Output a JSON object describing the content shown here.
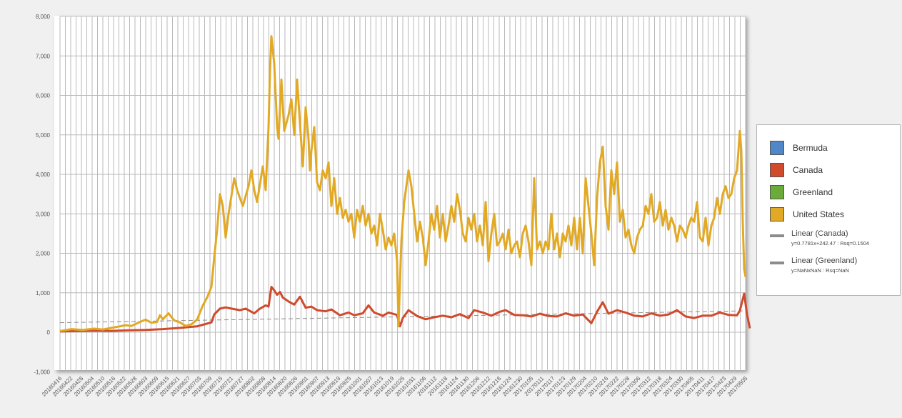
{
  "chart_data": {
    "type": "line",
    "y_ticks": [
      "-1,000",
      "0",
      "1,000",
      "2,000",
      "3,000",
      "4,000",
      "5,000",
      "6,000",
      "7,000",
      "8,000"
    ],
    "ylim": [
      -1000,
      8000
    ],
    "x_tick_labels": [
      "20160416",
      "20160422",
      "20160428",
      "20160504",
      "20160510",
      "20160516",
      "20160522",
      "20160528",
      "20160603",
      "20160609",
      "20160615",
      "20160621",
      "20160627",
      "20160703",
      "20160709",
      "20160715",
      "20160721",
      "20160727",
      "20160802",
      "20160808",
      "20160814",
      "20160820",
      "20160826",
      "20160901",
      "20160907",
      "20160913",
      "20160919",
      "20160925",
      "20161001",
      "20161007",
      "20161013",
      "20161019",
      "20161025",
      "20161031",
      "20161106",
      "20161112",
      "20161118",
      "20161124",
      "20161130",
      "20161206",
      "20161212",
      "20161218",
      "20161224",
      "20161230",
      "20170105",
      "20170111",
      "20170117",
      "20170123",
      "20170129",
      "20170204",
      "20170210",
      "20170216",
      "20170222",
      "20170228",
      "20170306",
      "20170312",
      "20170318",
      "20170324",
      "20170330",
      "20170405",
      "20170411",
      "20170417",
      "20170423",
      "20170429",
      "20170505"
    ],
    "series": [
      {
        "name": "Bermuda",
        "color": "#4f87c8",
        "values": []
      },
      {
        "name": "Canada",
        "color": "#d04a2c",
        "values": [
          [
            0,
            20
          ],
          [
            12,
            30
          ],
          [
            24,
            40
          ],
          [
            36,
            35
          ],
          [
            48,
            50
          ],
          [
            60,
            60
          ],
          [
            72,
            80
          ],
          [
            84,
            110
          ],
          [
            90,
            130
          ],
          [
            96,
            150
          ],
          [
            100,
            190
          ],
          [
            106,
            250
          ],
          [
            108,
            450
          ],
          [
            112,
            600
          ],
          [
            116,
            630
          ],
          [
            120,
            600
          ],
          [
            126,
            560
          ],
          [
            130,
            600
          ],
          [
            136,
            480
          ],
          [
            140,
            600
          ],
          [
            144,
            680
          ],
          [
            146,
            650
          ],
          [
            148,
            1150
          ],
          [
            150,
            1060
          ],
          [
            152,
            950
          ],
          [
            154,
            1020
          ],
          [
            156,
            880
          ],
          [
            160,
            780
          ],
          [
            164,
            700
          ],
          [
            168,
            900
          ],
          [
            172,
            620
          ],
          [
            176,
            650
          ],
          [
            180,
            560
          ],
          [
            186,
            530
          ],
          [
            190,
            580
          ],
          [
            196,
            430
          ],
          [
            202,
            500
          ],
          [
            206,
            430
          ],
          [
            212,
            480
          ],
          [
            216,
            680
          ],
          [
            220,
            500
          ],
          [
            226,
            420
          ],
          [
            230,
            500
          ],
          [
            236,
            440
          ],
          [
            238,
            150
          ],
          [
            240,
            360
          ],
          [
            244,
            560
          ],
          [
            250,
            410
          ],
          [
            256,
            330
          ],
          [
            262,
            380
          ],
          [
            268,
            420
          ],
          [
            274,
            380
          ],
          [
            280,
            460
          ],
          [
            286,
            360
          ],
          [
            290,
            560
          ],
          [
            296,
            500
          ],
          [
            302,
            420
          ],
          [
            308,
            520
          ],
          [
            312,
            560
          ],
          [
            318,
            440
          ],
          [
            324,
            430
          ],
          [
            330,
            400
          ],
          [
            336,
            470
          ],
          [
            342,
            410
          ],
          [
            348,
            400
          ],
          [
            354,
            480
          ],
          [
            360,
            420
          ],
          [
            366,
            450
          ],
          [
            372,
            230
          ],
          [
            376,
            520
          ],
          [
            380,
            760
          ],
          [
            384,
            470
          ],
          [
            390,
            560
          ],
          [
            396,
            500
          ],
          [
            402,
            420
          ],
          [
            408,
            400
          ],
          [
            414,
            480
          ],
          [
            420,
            420
          ],
          [
            426,
            450
          ],
          [
            432,
            560
          ],
          [
            438,
            400
          ],
          [
            444,
            360
          ],
          [
            450,
            420
          ],
          [
            456,
            420
          ],
          [
            462,
            500
          ],
          [
            468,
            440
          ],
          [
            474,
            430
          ],
          [
            476,
            550
          ],
          [
            479,
            980
          ],
          [
            481,
            450
          ],
          [
            483,
            100
          ]
        ]
      },
      {
        "name": "Greenland",
        "color": "#6aab3a",
        "values": []
      },
      {
        "name": "United States",
        "color": "#e2a925",
        "values": [
          [
            0,
            30
          ],
          [
            8,
            80
          ],
          [
            16,
            60
          ],
          [
            24,
            90
          ],
          [
            30,
            70
          ],
          [
            36,
            110
          ],
          [
            42,
            150
          ],
          [
            46,
            180
          ],
          [
            50,
            160
          ],
          [
            56,
            260
          ],
          [
            60,
            320
          ],
          [
            64,
            240
          ],
          [
            68,
            260
          ],
          [
            70,
            430
          ],
          [
            72,
            330
          ],
          [
            76,
            480
          ],
          [
            80,
            300
          ],
          [
            84,
            250
          ],
          [
            88,
            160
          ],
          [
            92,
            200
          ],
          [
            96,
            320
          ],
          [
            100,
            680
          ],
          [
            103,
            880
          ],
          [
            106,
            1150
          ],
          [
            108,
            1900
          ],
          [
            110,
            2600
          ],
          [
            112,
            3500
          ],
          [
            114,
            3200
          ],
          [
            116,
            2400
          ],
          [
            118,
            3000
          ],
          [
            122,
            3900
          ],
          [
            124,
            3600
          ],
          [
            128,
            3200
          ],
          [
            132,
            3700
          ],
          [
            134,
            4100
          ],
          [
            136,
            3600
          ],
          [
            138,
            3300
          ],
          [
            142,
            4200
          ],
          [
            144,
            3600
          ],
          [
            146,
            5200
          ],
          [
            147,
            6600
          ],
          [
            148,
            7500
          ],
          [
            150,
            6800
          ],
          [
            152,
            5200
          ],
          [
            153,
            4900
          ],
          [
            155,
            6400
          ],
          [
            157,
            5100
          ],
          [
            160,
            5500
          ],
          [
            162,
            5900
          ],
          [
            164,
            5000
          ],
          [
            166,
            6400
          ],
          [
            168,
            5300
          ],
          [
            170,
            4200
          ],
          [
            172,
            5700
          ],
          [
            174,
            4900
          ],
          [
            175,
            4100
          ],
          [
            176,
            4600
          ],
          [
            178,
            5200
          ],
          [
            180,
            3800
          ],
          [
            182,
            3600
          ],
          [
            184,
            4100
          ],
          [
            186,
            3900
          ],
          [
            188,
            4300
          ],
          [
            190,
            3200
          ],
          [
            192,
            3900
          ],
          [
            194,
            3000
          ],
          [
            196,
            3400
          ],
          [
            198,
            2900
          ],
          [
            200,
            3100
          ],
          [
            202,
            2800
          ],
          [
            204,
            3000
          ],
          [
            206,
            2400
          ],
          [
            208,
            3100
          ],
          [
            210,
            2800
          ],
          [
            212,
            3200
          ],
          [
            214,
            2700
          ],
          [
            216,
            3000
          ],
          [
            218,
            2500
          ],
          [
            220,
            2700
          ],
          [
            222,
            2200
          ],
          [
            224,
            3000
          ],
          [
            226,
            2600
          ],
          [
            228,
            2100
          ],
          [
            230,
            2400
          ],
          [
            232,
            2200
          ],
          [
            234,
            2500
          ],
          [
            236,
            1800
          ],
          [
            237,
            150
          ],
          [
            239,
            2300
          ],
          [
            241,
            3300
          ],
          [
            244,
            4100
          ],
          [
            246,
            3700
          ],
          [
            248,
            3000
          ],
          [
            250,
            2300
          ],
          [
            252,
            2800
          ],
          [
            254,
            2400
          ],
          [
            256,
            1700
          ],
          [
            258,
            2300
          ],
          [
            260,
            3000
          ],
          [
            262,
            2600
          ],
          [
            264,
            3200
          ],
          [
            266,
            2400
          ],
          [
            268,
            3000
          ],
          [
            270,
            2300
          ],
          [
            272,
            2700
          ],
          [
            274,
            3200
          ],
          [
            276,
            2800
          ],
          [
            278,
            3500
          ],
          [
            280,
            3100
          ],
          [
            282,
            2500
          ],
          [
            284,
            2300
          ],
          [
            286,
            2900
          ],
          [
            288,
            2600
          ],
          [
            290,
            3000
          ],
          [
            292,
            2300
          ],
          [
            294,
            2700
          ],
          [
            296,
            2200
          ],
          [
            298,
            3300
          ],
          [
            300,
            1800
          ],
          [
            302,
            2500
          ],
          [
            304,
            3000
          ],
          [
            306,
            2200
          ],
          [
            308,
            2300
          ],
          [
            310,
            2500
          ],
          [
            312,
            2100
          ],
          [
            314,
            2600
          ],
          [
            316,
            2000
          ],
          [
            318,
            2200
          ],
          [
            320,
            2300
          ],
          [
            322,
            1900
          ],
          [
            324,
            2500
          ],
          [
            326,
            2700
          ],
          [
            328,
            2300
          ],
          [
            330,
            1700
          ],
          [
            332,
            3900
          ],
          [
            334,
            2100
          ],
          [
            336,
            2300
          ],
          [
            338,
            2000
          ],
          [
            340,
            2300
          ],
          [
            342,
            2100
          ],
          [
            344,
            3000
          ],
          [
            346,
            2100
          ],
          [
            348,
            2500
          ],
          [
            350,
            1900
          ],
          [
            352,
            2500
          ],
          [
            354,
            2300
          ],
          [
            356,
            2700
          ],
          [
            358,
            2200
          ],
          [
            360,
            2900
          ],
          [
            362,
            2100
          ],
          [
            364,
            2900
          ],
          [
            366,
            2000
          ],
          [
            368,
            3900
          ],
          [
            370,
            3200
          ],
          [
            372,
            2500
          ],
          [
            374,
            1700
          ],
          [
            376,
            3400
          ],
          [
            378,
            4300
          ],
          [
            380,
            4700
          ],
          [
            382,
            3200
          ],
          [
            384,
            2600
          ],
          [
            386,
            4100
          ],
          [
            388,
            3500
          ],
          [
            390,
            4300
          ],
          [
            392,
            2800
          ],
          [
            394,
            3100
          ],
          [
            396,
            2400
          ],
          [
            398,
            2600
          ],
          [
            400,
            2200
          ],
          [
            402,
            2000
          ],
          [
            404,
            2400
          ],
          [
            406,
            2600
          ],
          [
            408,
            2700
          ],
          [
            410,
            3200
          ],
          [
            412,
            3000
          ],
          [
            414,
            3500
          ],
          [
            416,
            2800
          ],
          [
            418,
            2900
          ],
          [
            420,
            3300
          ],
          [
            422,
            2700
          ],
          [
            424,
            3100
          ],
          [
            426,
            2600
          ],
          [
            428,
            2900
          ],
          [
            430,
            2700
          ],
          [
            432,
            2300
          ],
          [
            434,
            2700
          ],
          [
            436,
            2600
          ],
          [
            438,
            2400
          ],
          [
            440,
            2700
          ],
          [
            442,
            2900
          ],
          [
            444,
            2800
          ],
          [
            446,
            3300
          ],
          [
            448,
            2400
          ],
          [
            450,
            2300
          ],
          [
            452,
            2900
          ],
          [
            454,
            2200
          ],
          [
            456,
            2700
          ],
          [
            458,
            2900
          ],
          [
            460,
            3400
          ],
          [
            462,
            3000
          ],
          [
            464,
            3500
          ],
          [
            466,
            3700
          ],
          [
            468,
            3400
          ],
          [
            470,
            3500
          ],
          [
            472,
            3900
          ],
          [
            474,
            4100
          ],
          [
            476,
            5100
          ],
          [
            477,
            4600
          ],
          [
            478,
            2800
          ],
          [
            479,
            1600
          ],
          [
            480,
            1400
          ]
        ]
      }
    ],
    "trendlines": [
      {
        "label": "Linear (Canada)",
        "equation": "y=0.7781x+242.47 : Rsq=0.1504",
        "color": "#8c8c8c",
        "slope": 0.7781,
        "intercept": 242.47
      },
      {
        "label": "Linear (Greenland)",
        "equation": "y=NaNxNaN : Rsq=NaN",
        "color": "#8c8c8c"
      }
    ],
    "grid": true,
    "legend_position": "right"
  }
}
